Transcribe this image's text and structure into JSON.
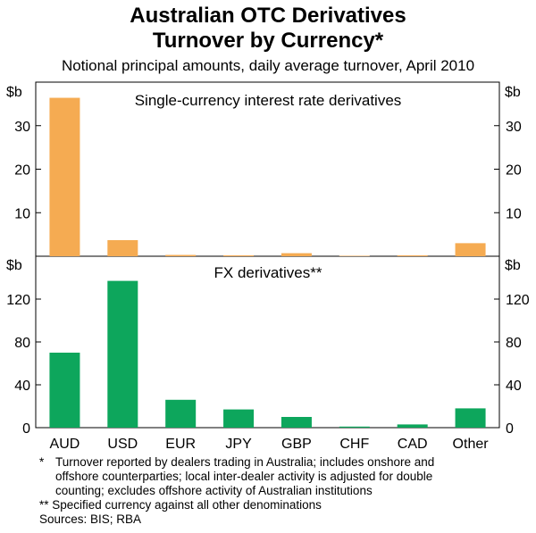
{
  "title_line1": "Australian OTC Derivatives",
  "title_line2": "Turnover by Currency*",
  "subtitle": "Notional principal amounts, daily average turnover, April 2010",
  "colors": {
    "top_bar": "#F5AB52",
    "bottom_bar": "#0DA65C",
    "axis": "#000000"
  },
  "chart_data": [
    {
      "type": "bar",
      "title": "Single-currency interest rate derivatives",
      "unit": "$b",
      "categories": [
        "AUD",
        "USD",
        "EUR",
        "JPY",
        "GBP",
        "CHF",
        "CAD",
        "Other"
      ],
      "values": [
        36.4,
        3.7,
        0.3,
        0.2,
        0.7,
        0.1,
        0.2,
        3.0
      ],
      "ylim": [
        0,
        40
      ],
      "yticks": [
        "10",
        "20",
        "30"
      ]
    },
    {
      "type": "bar",
      "title": "FX derivatives**",
      "unit": "$b",
      "categories": [
        "AUD",
        "USD",
        "EUR",
        "JPY",
        "GBP",
        "CHF",
        "CAD",
        "Other"
      ],
      "values": [
        70,
        137,
        26,
        17,
        10,
        1,
        3,
        18
      ],
      "ylim": [
        0,
        160
      ],
      "yticks": [
        "0",
        "40",
        "80",
        "120"
      ]
    }
  ],
  "notes": {
    "star_mark": "*",
    "star_line1": "Turnover reported by dealers trading in Australia; includes onshore and",
    "star_line2": "offshore counterparties; local inter-dealer activity is adjusted for double",
    "star_line3": "counting; excludes offshore activity of Australian institutions",
    "double_star": "** Specified currency against all other denominations",
    "sources": "Sources: BIS; RBA"
  }
}
